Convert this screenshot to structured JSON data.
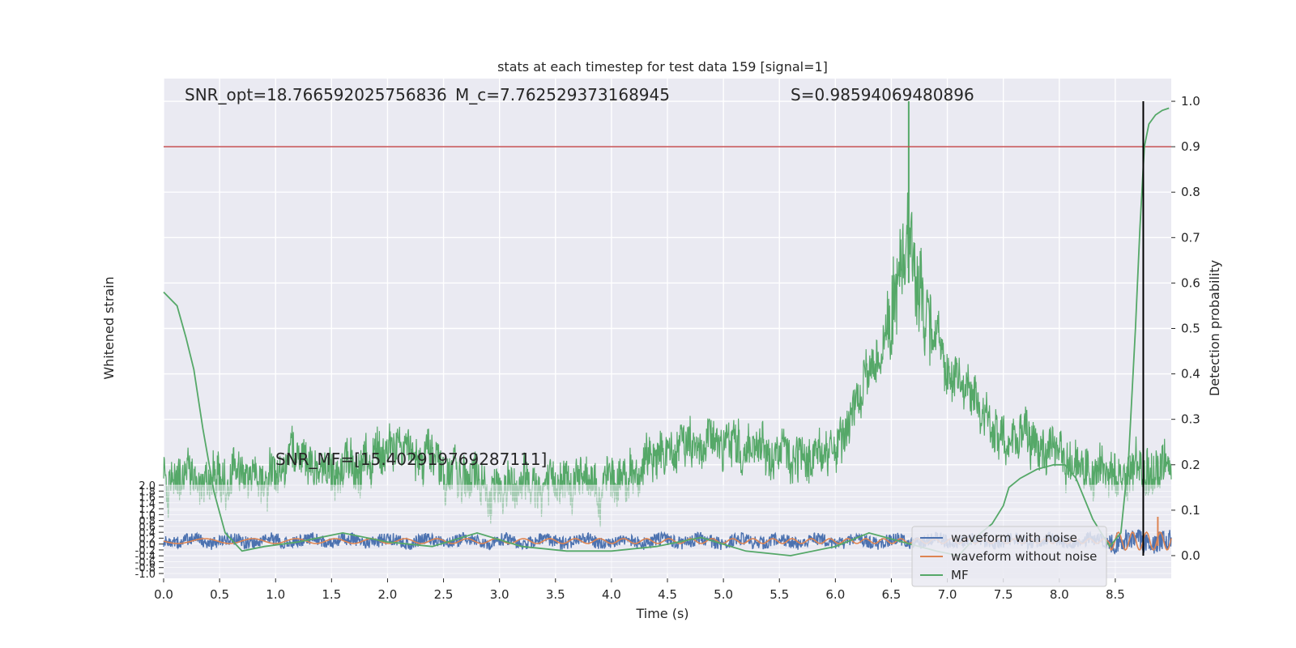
{
  "chart_data": {
    "type": "line",
    "title": "stats at each timestep for test data 159 [signal=1]",
    "xlabel": "Time (s)",
    "ylabel_left": "Whitened strain",
    "ylabel_right": "Detection probability",
    "xlim": [
      0,
      9
    ],
    "x_ticks": [
      "0.0",
      "0.5",
      "1.0",
      "1.5",
      "2.0",
      "2.5",
      "3.0",
      "3.5",
      "4.0",
      "4.5",
      "5.0",
      "5.5",
      "6.0",
      "6.5",
      "7.0",
      "7.5",
      "8.0",
      "8.5"
    ],
    "right_ylim": [
      -0.05,
      1.05
    ],
    "right_ticks": [
      "0.0",
      "0.1",
      "0.2",
      "0.3",
      "0.4",
      "0.5",
      "0.6",
      "0.7",
      "0.8",
      "0.9",
      "1.0"
    ],
    "threshold": 0.9,
    "marker_time": 8.75,
    "marker_range": [
      0.0,
      1.0
    ],
    "grid": true,
    "legend_position": "bottom-right",
    "annotations": {
      "snr_opt": "SNR_opt=18.766592025756836",
      "mc": "M_c=7.762529373168945",
      "s": "S=0.98594069480896",
      "snr_mf": "SNR_MF=[15.402919769287111]"
    },
    "series": [
      {
        "name": "waveform with noise",
        "color": "#4c72b0"
      },
      {
        "name": "waveform without noise",
        "color": "#dd8452"
      },
      {
        "name": "MF",
        "color": "#55a868"
      }
    ],
    "mf_envelope": {
      "x": [
        0.0,
        0.3,
        0.6,
        0.9,
        1.2,
        1.5,
        1.8,
        2.1,
        2.4,
        2.7,
        3.0,
        3.3,
        3.6,
        3.9,
        4.2,
        4.5,
        4.8,
        5.1,
        5.4,
        5.7,
        6.0,
        6.2,
        6.4,
        6.55,
        6.62,
        6.66,
        6.7,
        6.78,
        6.9,
        7.1,
        7.3,
        7.5,
        7.7,
        7.9,
        8.1,
        8.3,
        8.5,
        8.7,
        9.0
      ],
      "y": [
        0.17,
        0.16,
        0.18,
        0.17,
        0.21,
        0.19,
        0.2,
        0.23,
        0.22,
        0.17,
        0.15,
        0.17,
        0.16,
        0.15,
        0.19,
        0.22,
        0.24,
        0.25,
        0.23,
        0.22,
        0.25,
        0.33,
        0.45,
        0.58,
        0.68,
        0.75,
        0.62,
        0.55,
        0.47,
        0.38,
        0.31,
        0.28,
        0.25,
        0.24,
        0.21,
        0.19,
        0.18,
        0.2,
        0.19
      ]
    },
    "probability_curve": {
      "x": [
        0.0,
        0.12,
        0.2,
        0.27,
        0.35,
        0.45,
        0.55,
        0.7,
        0.9,
        1.2,
        1.6,
        2.0,
        2.4,
        2.8,
        3.2,
        3.6,
        4.0,
        4.4,
        4.8,
        5.2,
        5.6,
        6.0,
        6.3,
        6.6,
        6.9,
        7.1,
        7.25,
        7.4,
        7.5,
        7.55,
        7.65,
        7.8,
        7.95,
        8.05,
        8.15,
        8.3,
        8.45,
        8.55,
        8.62,
        8.68,
        8.72,
        8.76,
        8.8,
        8.86,
        8.92,
        8.98
      ],
      "y": [
        0.58,
        0.55,
        0.48,
        0.41,
        0.28,
        0.14,
        0.05,
        0.01,
        0.02,
        0.03,
        0.05,
        0.03,
        0.02,
        0.05,
        0.02,
        0.01,
        0.01,
        0.02,
        0.04,
        0.01,
        0.0,
        0.02,
        0.05,
        0.03,
        0.01,
        0.0,
        0.04,
        0.07,
        0.11,
        0.15,
        0.17,
        0.19,
        0.2,
        0.2,
        0.17,
        0.08,
        0.02,
        0.05,
        0.22,
        0.5,
        0.72,
        0.9,
        0.95,
        0.97,
        0.98,
        0.985
      ]
    },
    "strain_ticks": [
      "2.0",
      "1.8",
      "1.6",
      "1.4",
      "1.2",
      "1.0",
      "0.8",
      "0.6",
      "0.4",
      "0.2",
      "0.0",
      "-0.2",
      "-0.4",
      "-0.6",
      "-0.8",
      "-1.0"
    ]
  }
}
